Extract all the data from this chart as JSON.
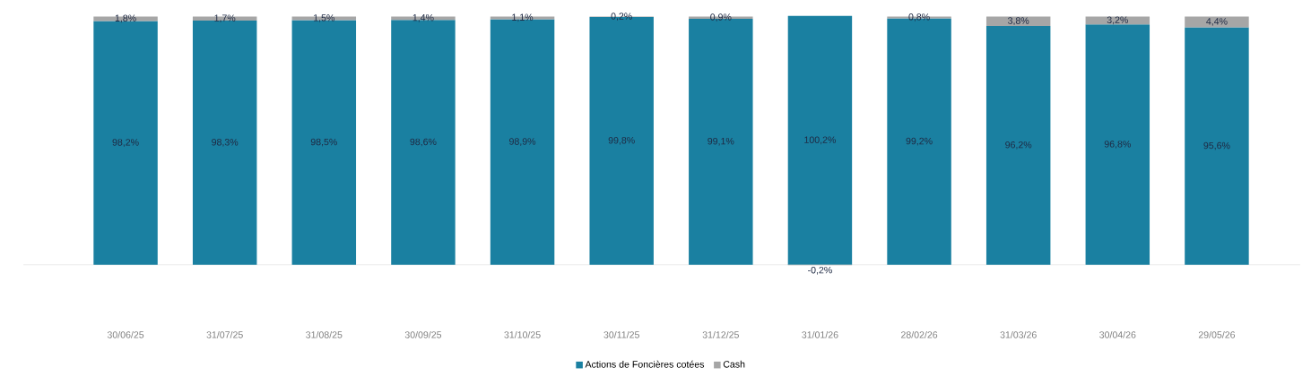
{
  "chart_data": {
    "type": "bar",
    "stacked": true,
    "legend": "bottom",
    "categories": [
      "30/06/25",
      "31/07/25",
      "31/08/25",
      "30/09/25",
      "31/10/25",
      "30/11/25",
      "31/12/25",
      "31/01/26",
      "28/02/26",
      "31/03/26",
      "30/04/26",
      "29/05/26"
    ],
    "series": [
      {
        "name": "Actions de Foncières cotées",
        "color": "#1a80a1",
        "values": [
          98.2,
          98.3,
          98.5,
          98.6,
          98.9,
          99.8,
          99.1,
          100.2,
          99.2,
          96.2,
          96.8,
          95.6
        ],
        "value_labels": [
          "98,2%",
          "98,3%",
          "98,5%",
          "98,6%",
          "98,9%",
          "99,8%",
          "99,1%",
          "100,2%",
          "99,2%",
          "96,2%",
          "96,8%",
          "95,6%"
        ]
      },
      {
        "name": "Cash",
        "color": "#a6a6a6",
        "values": [
          1.8,
          1.7,
          1.5,
          1.4,
          1.1,
          0.2,
          0.9,
          -0.2,
          0.8,
          3.8,
          3.2,
          4.4
        ],
        "value_labels": [
          "1,8%",
          "1,7%",
          "1,5%",
          "1,4%",
          "1,1%",
          "0,2%",
          "0,9%",
          "-0,2%",
          "0,8%",
          "3,8%",
          "3,2%",
          "4,4%"
        ]
      }
    ]
  }
}
